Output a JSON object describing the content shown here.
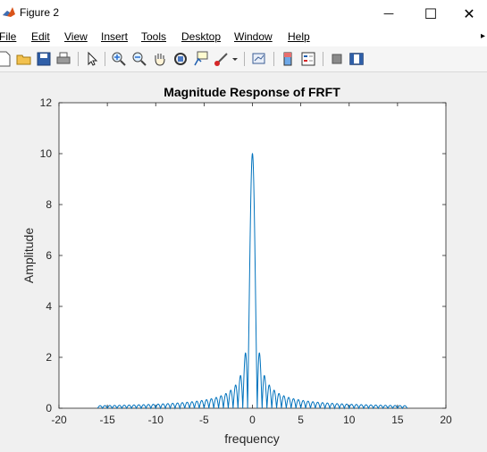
{
  "window": {
    "title": "Figure 2",
    "minimize_glyph": "—",
    "maximize_glyph": "☐",
    "close_glyph": "✕"
  },
  "menu": {
    "items": [
      {
        "label": "File",
        "name": "menu-file"
      },
      {
        "label": "Edit",
        "name": "menu-edit"
      },
      {
        "label": "View",
        "name": "menu-view"
      },
      {
        "label": "Insert",
        "name": "menu-insert"
      },
      {
        "label": "Tools",
        "name": "menu-tools"
      },
      {
        "label": "Desktop",
        "name": "menu-desktop"
      },
      {
        "label": "Window",
        "name": "menu-window"
      },
      {
        "label": "Help",
        "name": "menu-help"
      }
    ],
    "overflow_glyph": "▸"
  },
  "toolbar": {
    "icons": [
      "new-figure-icon",
      "open-file-icon",
      "save-icon",
      "print-icon",
      "pointer-icon",
      "zoom-in-icon",
      "zoom-out-icon",
      "pan-hand-icon",
      "rotate-3d-icon",
      "data-cursor-icon",
      "brush-icon",
      "dropdown-arrow-icon",
      "link-plot-icon",
      "colorbar-icon",
      "legend-icon",
      "hide-plot-tools-icon",
      "show-plot-tools-icon"
    ]
  },
  "colors": {
    "line": "#0072bd",
    "axes_bg": "#ffffff",
    "figure_bg": "#f0f0f0",
    "axis": "#262626"
  },
  "chart_data": {
    "type": "line",
    "title": "Magnitude Response of FRFT",
    "xlabel": "frequency",
    "ylabel": "Amplitude",
    "xlim": [
      -20,
      20
    ],
    "ylim": [
      0,
      12
    ],
    "xticks": [
      -20,
      -15,
      -10,
      -5,
      0,
      5,
      10,
      15,
      20
    ],
    "yticks": [
      0,
      2,
      4,
      6,
      8,
      10,
      12
    ],
    "grid": false,
    "series": [
      {
        "x_range": [
          -16,
          16
        ],
        "peak": 10,
        "main_lobe_halfwidth": 0.5,
        "first_sidelobe": 2.15,
        "description_points": [
          [
            -16,
            0.0
          ],
          [
            -10,
            0.08
          ],
          [
            -5,
            0.4
          ],
          [
            -2,
            1.0
          ],
          [
            -1,
            1.3
          ],
          [
            -0.75,
            2.15
          ],
          [
            -0.5,
            0.0
          ],
          [
            0,
            10
          ],
          [
            0.5,
            0.0
          ],
          [
            0.75,
            2.15
          ],
          [
            1,
            1.3
          ],
          [
            2,
            1.0
          ],
          [
            5,
            0.4
          ],
          [
            10,
            0.08
          ],
          [
            16,
            0.0
          ]
        ]
      }
    ]
  }
}
